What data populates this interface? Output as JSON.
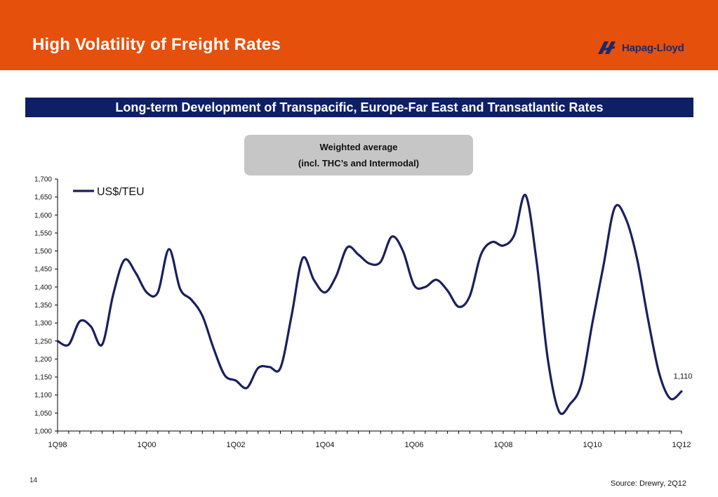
{
  "header": {
    "title": "High Volatility of Freight Rates",
    "logo_text": "Hapag-Lloyd",
    "logo_icon": "hapag-lloyd-logo-icon",
    "bar_color": "#e5500c"
  },
  "banner": {
    "text": "Long-term Development of Transpacific, Europe-Far East and Transatlantic Rates",
    "color": "#0f1f66"
  },
  "note": {
    "line1": "Weighted average",
    "line2": "(incl. THC’s and Intermodal)"
  },
  "footer": {
    "page_number": "14",
    "source": "Source: Drewry, 2Q12"
  },
  "chart_data": {
    "type": "line",
    "title": "",
    "xlabel": "",
    "ylabel": "",
    "ylim": [
      1000,
      1700
    ],
    "y_ticks": [
      1000,
      1050,
      1100,
      1150,
      1200,
      1250,
      1300,
      1350,
      1400,
      1450,
      1500,
      1550,
      1600,
      1650,
      1700
    ],
    "y_tick_labels": [
      "1,000",
      "1,050",
      "1,100",
      "1,150",
      "1,200",
      "1,250",
      "1,300",
      "1,350",
      "1,400",
      "1,450",
      "1,500",
      "1,550",
      "1,600",
      "1,650",
      "1,700"
    ],
    "x_tick_labels": [
      "1Q98",
      "1Q00",
      "1Q02",
      "1Q04",
      "1Q06",
      "1Q08",
      "1Q10",
      "1Q12"
    ],
    "x_label_every": 8,
    "grid": false,
    "legend": "top-left",
    "series": [
      {
        "name": "US$/TEU",
        "color": "#1a1f5e",
        "x": [
          "1Q98",
          "2Q98",
          "3Q98",
          "4Q98",
          "1Q99",
          "2Q99",
          "3Q99",
          "4Q99",
          "1Q00",
          "2Q00",
          "3Q00",
          "4Q00",
          "1Q01",
          "2Q01",
          "3Q01",
          "4Q01",
          "1Q02",
          "2Q02",
          "3Q02",
          "4Q02",
          "1Q03",
          "2Q03",
          "3Q03",
          "4Q03",
          "1Q04",
          "2Q04",
          "3Q04",
          "4Q04",
          "1Q05",
          "2Q05",
          "3Q05",
          "4Q05",
          "1Q06",
          "2Q06",
          "3Q06",
          "4Q06",
          "1Q07",
          "2Q07",
          "3Q07",
          "4Q07",
          "1Q08",
          "2Q08",
          "3Q08",
          "4Q08",
          "1Q09",
          "2Q09",
          "3Q09",
          "4Q09",
          "1Q10",
          "2Q10",
          "3Q10",
          "4Q10",
          "1Q11",
          "2Q11",
          "3Q11",
          "4Q11",
          "1Q12"
        ],
        "values": [
          1250,
          1240,
          1305,
          1290,
          1240,
          1380,
          1475,
          1440,
          1385,
          1385,
          1505,
          1395,
          1365,
          1320,
          1230,
          1155,
          1140,
          1120,
          1175,
          1178,
          1175,
          1320,
          1480,
          1420,
          1385,
          1430,
          1510,
          1490,
          1465,
          1470,
          1540,
          1500,
          1405,
          1400,
          1420,
          1390,
          1345,
          1375,
          1490,
          1525,
          1515,
          1545,
          1655,
          1470,
          1200,
          1055,
          1075,
          1130,
          1300,
          1460,
          1620,
          1590,
          1480,
          1310,
          1160,
          1090,
          1110
        ]
      }
    ],
    "annotations": [
      {
        "x": "1Q12",
        "text": "1,110"
      }
    ]
  }
}
